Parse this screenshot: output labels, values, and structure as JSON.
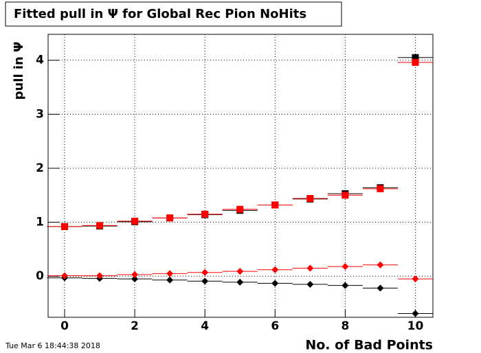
{
  "chart_data": {
    "type": "scatter",
    "title": "Fitted pull in  Ψ  for Global Rec Pion NoHits",
    "y_label": "pull in  Ψ",
    "x_label": "No. of Bad Points",
    "timestamp": "Tue Mar  6 18:44:38 2018",
    "x": [
      0,
      1,
      2,
      3,
      4,
      5,
      6,
      7,
      8,
      9,
      10
    ],
    "series": [
      {
        "color": "#000000",
        "marker": "square",
        "values": [
          0.92,
          0.93,
          1.01,
          1.08,
          1.14,
          1.22,
          1.32,
          1.43,
          1.53,
          1.64,
          4.05
        ]
      },
      {
        "color": "#ff0000",
        "marker": "square",
        "values": [
          0.92,
          0.94,
          1.02,
          1.08,
          1.15,
          1.24,
          1.32,
          1.44,
          1.5,
          1.62,
          3.96
        ]
      },
      {
        "color": "#000000",
        "marker": "diamond",
        "values": [
          -0.03,
          -0.04,
          -0.05,
          -0.07,
          -0.09,
          -0.11,
          -0.13,
          -0.15,
          -0.17,
          -0.22,
          -0.69
        ]
      },
      {
        "color": "#ff0000",
        "marker": "diamond",
        "values": [
          0.01,
          0.01,
          0.03,
          0.05,
          0.07,
          0.09,
          0.12,
          0.15,
          0.18,
          0.21,
          -0.05
        ]
      }
    ],
    "xlim": [
      -0.47,
      10.5
    ],
    "ylim": [
      -0.76,
      4.48
    ],
    "xticks": [
      0,
      2,
      4,
      6,
      8,
      10
    ],
    "yticks": [
      0,
      1,
      2,
      3,
      4
    ],
    "grid": true
  }
}
